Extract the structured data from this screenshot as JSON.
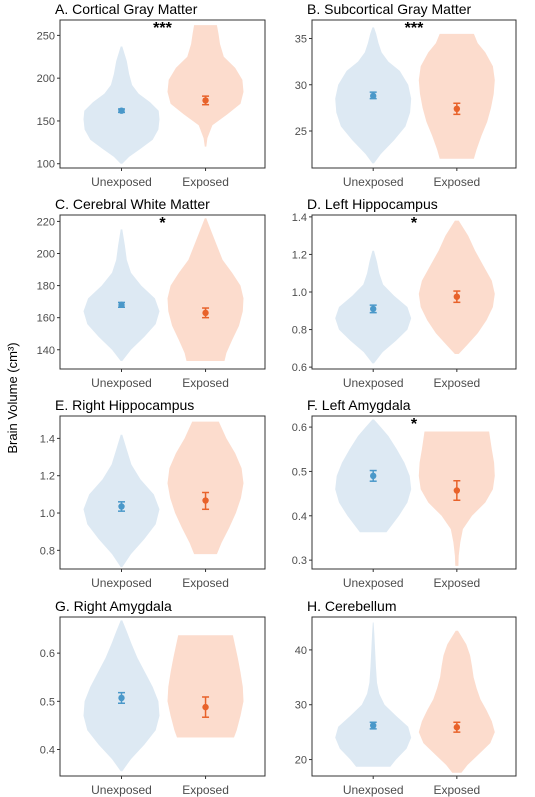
{
  "y_axis_label": "Brain Volume (cm³)",
  "colors": {
    "unexposed_fill": "#dde9f3",
    "exposed_fill": "#fcdccd",
    "unexposed_point": "#4a98c9",
    "exposed_point": "#e8622a"
  },
  "chart_data": [
    {
      "type": "violin",
      "title": "A. Cortical Gray Matter",
      "categories": [
        "Unexposed",
        "Exposed"
      ],
      "significance": "***",
      "ylim": [
        95,
        268
      ],
      "yticks": [
        100,
        150,
        200,
        250
      ],
      "means": [
        162,
        174
      ],
      "ci": [
        [
          160,
          164
        ],
        [
          169,
          179
        ]
      ],
      "violins": [
        {
          "min": 100,
          "max": 237,
          "profile": [
            [
              100,
              0.02
            ],
            [
              108,
              0.2
            ],
            [
              118,
              0.52
            ],
            [
              128,
              0.82
            ],
            [
              140,
              0.97
            ],
            [
              152,
              1.0
            ],
            [
              162,
              0.98
            ],
            [
              172,
              0.75
            ],
            [
              182,
              0.45
            ],
            [
              192,
              0.28
            ],
            [
              205,
              0.2
            ],
            [
              220,
              0.14
            ],
            [
              237,
              0.02
            ]
          ]
        },
        {
          "min": 120,
          "max": 262,
          "profile": [
            [
              120,
              0.02
            ],
            [
              130,
              0.05
            ],
            [
              145,
              0.18
            ],
            [
              158,
              0.58
            ],
            [
              170,
              0.92
            ],
            [
              184,
              1.0
            ],
            [
              198,
              0.97
            ],
            [
              212,
              0.78
            ],
            [
              225,
              0.48
            ],
            [
              240,
              0.38
            ],
            [
              252,
              0.34
            ],
            [
              262,
              0.3
            ]
          ]
        }
      ]
    },
    {
      "type": "violin",
      "title": "B. Subcortical Gray Matter",
      "categories": [
        "Unexposed",
        "Exposed"
      ],
      "significance": "***",
      "ylim": [
        21,
        37
      ],
      "yticks": [
        25,
        30,
        35
      ],
      "means": [
        28.8,
        27.4
      ],
      "ci": [
        [
          28.5,
          29.2
        ],
        [
          26.8,
          28.0
        ]
      ],
      "violins": [
        {
          "min": 21.5,
          "max": 36.2,
          "profile": [
            [
              21.5,
              0.02
            ],
            [
              22.5,
              0.2
            ],
            [
              24,
              0.55
            ],
            [
              25.5,
              0.85
            ],
            [
              27,
              0.97
            ],
            [
              28.5,
              1.0
            ],
            [
              30,
              0.92
            ],
            [
              31.5,
              0.7
            ],
            [
              32.5,
              0.4
            ],
            [
              33.5,
              0.22
            ],
            [
              34.5,
              0.14
            ],
            [
              35.5,
              0.08
            ],
            [
              36.2,
              0.02
            ]
          ]
        },
        {
          "min": 22.0,
          "max": 35.5,
          "profile": [
            [
              22,
              0.45
            ],
            [
              23,
              0.52
            ],
            [
              24.5,
              0.65
            ],
            [
              26,
              0.8
            ],
            [
              27.5,
              0.9
            ],
            [
              29,
              0.97
            ],
            [
              30.5,
              1.0
            ],
            [
              32,
              0.95
            ],
            [
              33.5,
              0.75
            ],
            [
              34.5,
              0.55
            ],
            [
              35.5,
              0.45
            ]
          ]
        }
      ]
    },
    {
      "type": "violin",
      "title": "C. Cerebral White Matter",
      "categories": [
        "Unexposed",
        "Exposed"
      ],
      "significance": "*",
      "ylim": [
        128,
        224
      ],
      "yticks": [
        140,
        160,
        180,
        200,
        220
      ],
      "means": [
        168,
        163
      ],
      "ci": [
        [
          166.5,
          169.5
        ],
        [
          160,
          166
        ]
      ],
      "violins": [
        {
          "min": 133,
          "max": 215,
          "profile": [
            [
              133,
              0.02
            ],
            [
              140,
              0.25
            ],
            [
              148,
              0.6
            ],
            [
              156,
              0.9
            ],
            [
              164,
              1.0
            ],
            [
              172,
              0.88
            ],
            [
              180,
              0.52
            ],
            [
              188,
              0.25
            ],
            [
              196,
              0.14
            ],
            [
              205,
              0.09
            ],
            [
              215,
              0.02
            ]
          ]
        },
        {
          "min": 133,
          "max": 222,
          "profile": [
            [
              133,
              0.5
            ],
            [
              138,
              0.55
            ],
            [
              146,
              0.7
            ],
            [
              155,
              0.88
            ],
            [
              164,
              0.98
            ],
            [
              172,
              1.0
            ],
            [
              180,
              0.92
            ],
            [
              188,
              0.7
            ],
            [
              196,
              0.45
            ],
            [
              205,
              0.3
            ],
            [
              214,
              0.15
            ],
            [
              222,
              0.02
            ]
          ]
        }
      ]
    },
    {
      "type": "violin",
      "title": "D. Left Hippocampus",
      "categories": [
        "Unexposed",
        "Exposed"
      ],
      "significance": "*",
      "ylim": [
        0.59,
        1.41
      ],
      "yticks": [
        0.6,
        0.8,
        1.0,
        1.2,
        1.4
      ],
      "means": [
        0.91,
        0.975
      ],
      "ci": [
        [
          0.89,
          0.93
        ],
        [
          0.945,
          1.005
        ]
      ],
      "violins": [
        {
          "min": 0.62,
          "max": 1.22,
          "profile": [
            [
              0.62,
              0.02
            ],
            [
              0.68,
              0.25
            ],
            [
              0.74,
              0.6
            ],
            [
              0.8,
              0.9
            ],
            [
              0.86,
              1.0
            ],
            [
              0.92,
              0.9
            ],
            [
              0.98,
              0.55
            ],
            [
              1.04,
              0.26
            ],
            [
              1.1,
              0.16
            ],
            [
              1.16,
              0.1
            ],
            [
              1.22,
              0.02
            ]
          ]
        },
        {
          "min": 0.67,
          "max": 1.38,
          "profile": [
            [
              0.67,
              0.05
            ],
            [
              0.72,
              0.28
            ],
            [
              0.78,
              0.55
            ],
            [
              0.85,
              0.78
            ],
            [
              0.92,
              0.95
            ],
            [
              0.99,
              1.0
            ],
            [
              1.06,
              0.92
            ],
            [
              1.14,
              0.7
            ],
            [
              1.22,
              0.48
            ],
            [
              1.3,
              0.3
            ],
            [
              1.38,
              0.05
            ]
          ]
        }
      ]
    },
    {
      "type": "violin",
      "title": "E. Right Hippocampus",
      "categories": [
        "Unexposed",
        "Exposed"
      ],
      "significance": "",
      "ylim": [
        0.7,
        1.52
      ],
      "yticks": [
        0.8,
        1.0,
        1.2,
        1.4
      ],
      "means": [
        1.035,
        1.067
      ],
      "ci": [
        [
          1.01,
          1.06
        ],
        [
          1.02,
          1.11
        ]
      ],
      "violins": [
        {
          "min": 0.71,
          "max": 1.42,
          "profile": [
            [
              0.71,
              0.02
            ],
            [
              0.78,
              0.25
            ],
            [
              0.86,
              0.6
            ],
            [
              0.94,
              0.9
            ],
            [
              1.02,
              1.0
            ],
            [
              1.1,
              0.85
            ],
            [
              1.18,
              0.5
            ],
            [
              1.26,
              0.26
            ],
            [
              1.34,
              0.14
            ],
            [
              1.42,
              0.02
            ]
          ]
        },
        {
          "min": 0.78,
          "max": 1.49,
          "profile": [
            [
              0.78,
              0.3
            ],
            [
              0.84,
              0.42
            ],
            [
              0.92,
              0.62
            ],
            [
              1.0,
              0.8
            ],
            [
              1.08,
              0.93
            ],
            [
              1.16,
              1.0
            ],
            [
              1.24,
              0.95
            ],
            [
              1.32,
              0.78
            ],
            [
              1.4,
              0.55
            ],
            [
              1.49,
              0.35
            ]
          ]
        }
      ]
    },
    {
      "type": "violin",
      "title": "F. Left Amygdala",
      "categories": [
        "Unexposed",
        "Exposed"
      ],
      "significance": "*",
      "ylim": [
        0.28,
        0.625
      ],
      "yticks": [
        0.3,
        0.4,
        0.5,
        0.6
      ],
      "means": [
        0.49,
        0.457
      ],
      "ci": [
        [
          0.478,
          0.502
        ],
        [
          0.435,
          0.479
        ]
      ],
      "violins": [
        {
          "min": 0.363,
          "max": 0.617,
          "profile": [
            [
              0.363,
              0.35
            ],
            [
              0.38,
              0.5
            ],
            [
              0.4,
              0.68
            ],
            [
              0.43,
              0.9
            ],
            [
              0.46,
              1.0
            ],
            [
              0.49,
              0.96
            ],
            [
              0.52,
              0.82
            ],
            [
              0.55,
              0.62
            ],
            [
              0.58,
              0.4
            ],
            [
              0.6,
              0.2
            ],
            [
              0.617,
              0.02
            ]
          ]
        },
        {
          "min": 0.287,
          "max": 0.59,
          "profile": [
            [
              0.287,
              0.04
            ],
            [
              0.31,
              0.05
            ],
            [
              0.34,
              0.09
            ],
            [
              0.37,
              0.16
            ],
            [
              0.4,
              0.4
            ],
            [
              0.43,
              0.75
            ],
            [
              0.46,
              0.95
            ],
            [
              0.49,
              1.0
            ],
            [
              0.52,
              0.98
            ],
            [
              0.55,
              0.92
            ],
            [
              0.59,
              0.85
            ]
          ]
        }
      ]
    },
    {
      "type": "violin",
      "title": "G. Right Amygdala",
      "categories": [
        "Unexposed",
        "Exposed"
      ],
      "significance": "",
      "ylim": [
        0.345,
        0.675
      ],
      "yticks": [
        0.4,
        0.5,
        0.6
      ],
      "means": [
        0.507,
        0.488
      ],
      "ci": [
        [
          0.496,
          0.518
        ],
        [
          0.467,
          0.509
        ]
      ],
      "violins": [
        {
          "min": 0.355,
          "max": 0.668,
          "profile": [
            [
              0.355,
              0.02
            ],
            [
              0.38,
              0.25
            ],
            [
              0.41,
              0.6
            ],
            [
              0.44,
              0.9
            ],
            [
              0.47,
              1.0
            ],
            [
              0.5,
              0.97
            ],
            [
              0.53,
              0.82
            ],
            [
              0.56,
              0.62
            ],
            [
              0.59,
              0.42
            ],
            [
              0.62,
              0.26
            ],
            [
              0.645,
              0.14
            ],
            [
              0.668,
              0.02
            ]
          ]
        },
        {
          "min": 0.425,
          "max": 0.637,
          "profile": [
            [
              0.425,
              0.75
            ],
            [
              0.44,
              0.82
            ],
            [
              0.47,
              0.92
            ],
            [
              0.5,
              1.0
            ],
            [
              0.53,
              0.98
            ],
            [
              0.56,
              0.92
            ],
            [
              0.59,
              0.85
            ],
            [
              0.615,
              0.78
            ],
            [
              0.637,
              0.72
            ]
          ]
        }
      ]
    },
    {
      "type": "violin",
      "title": "H. Cerebellum",
      "categories": [
        "Unexposed",
        "Exposed"
      ],
      "significance": "",
      "ylim": [
        17,
        46
      ],
      "yticks": [
        20,
        30,
        40
      ],
      "means": [
        26.2,
        25.9
      ],
      "ci": [
        [
          25.6,
          26.8
        ],
        [
          25.0,
          26.8
        ]
      ],
      "violins": [
        {
          "min": 18.7,
          "max": 45.0,
          "profile": [
            [
              18.7,
              0.45
            ],
            [
              20,
              0.6
            ],
            [
              22,
              0.88
            ],
            [
              24,
              1.0
            ],
            [
              26,
              0.92
            ],
            [
              28,
              0.6
            ],
            [
              30,
              0.3
            ],
            [
              32,
              0.16
            ],
            [
              34,
              0.1
            ],
            [
              37,
              0.07
            ],
            [
              40,
              0.05
            ],
            [
              43,
              0.03
            ],
            [
              45,
              0.01
            ]
          ]
        },
        {
          "min": 17.6,
          "max": 43.5,
          "profile": [
            [
              17.6,
              0.12
            ],
            [
              19,
              0.28
            ],
            [
              21,
              0.58
            ],
            [
              23,
              0.88
            ],
            [
              25,
              1.0
            ],
            [
              27,
              0.92
            ],
            [
              29,
              0.78
            ],
            [
              31,
              0.62
            ],
            [
              33,
              0.52
            ],
            [
              35,
              0.44
            ],
            [
              37,
              0.4
            ],
            [
              39,
              0.35
            ],
            [
              41,
              0.25
            ],
            [
              43.5,
              0.03
            ]
          ]
        }
      ]
    }
  ]
}
